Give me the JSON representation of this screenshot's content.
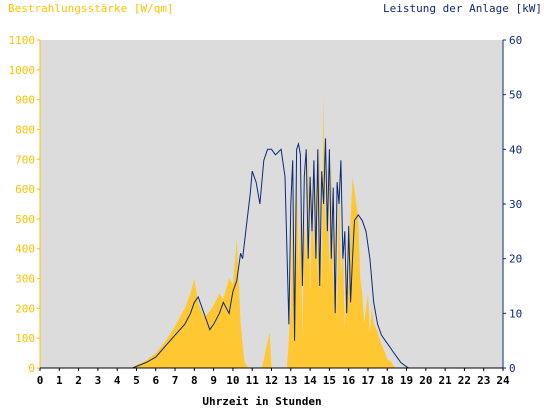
{
  "chart_data": {
    "type": "area",
    "title_left": "Bestrahlungsstärke [W/qm]",
    "title_right": "Leistung der Anlage [kW]",
    "xlabel": "Uhrzeit in Stunden",
    "x_ticks": [
      "0",
      "1",
      "2",
      "3",
      "4",
      "5",
      "6",
      "7",
      "8",
      "9",
      "10",
      "11",
      "12",
      "13",
      "14",
      "15",
      "16",
      "17",
      "18",
      "19",
      "20",
      "21",
      "22",
      "23",
      "24"
    ],
    "xlim": [
      0,
      24
    ],
    "left_axis": {
      "label": "Bestrahlungsstärke [W/qm]",
      "ylim": [
        0,
        1100
      ],
      "ticks": [
        "0",
        "100",
        "200",
        "300",
        "400",
        "500",
        "600",
        "700",
        "800",
        "900",
        "1000",
        "1100"
      ],
      "color": "#ffc000"
    },
    "right_axis": {
      "label": "Leistung der Anlage [kW]",
      "ylim": [
        0,
        60
      ],
      "ticks": [
        "0",
        "10",
        "20",
        "30",
        "40",
        "50",
        "60"
      ],
      "color": "#0b2a7a"
    },
    "grid": false,
    "plot_background": "#dcdcdc",
    "series": [
      {
        "name": "Bestrahlungsstärke [W/qm]",
        "axis": "left",
        "style": "area",
        "color": "#ffc832",
        "x": [
          0,
          4.7,
          5.0,
          5.5,
          6.0,
          6.5,
          7.0,
          7.5,
          7.8,
          8.0,
          8.2,
          8.5,
          8.8,
          9.0,
          9.3,
          9.5,
          9.8,
          10.0,
          10.2,
          10.4,
          10.5,
          10.6,
          10.8,
          11.0,
          11.2,
          11.5,
          11.9,
          12.0,
          12.1,
          12.3,
          12.6,
          12.8,
          13.0,
          13.1,
          13.2,
          13.3,
          13.4,
          13.5,
          13.6,
          13.7,
          13.8,
          13.9,
          14.0,
          14.1,
          14.2,
          14.3,
          14.4,
          14.5,
          14.6,
          14.7,
          14.8,
          14.9,
          15.0,
          15.1,
          15.2,
          15.3,
          15.4,
          15.5,
          15.6,
          15.7,
          15.8,
          15.9,
          16.0,
          16.1,
          16.2,
          16.3,
          16.4,
          16.5,
          16.6,
          16.7,
          16.8,
          16.9,
          17.0,
          17.1,
          17.2,
          17.3,
          17.5,
          17.7,
          17.9,
          18.0,
          18.2,
          18.4,
          18.6,
          18.8,
          19.0,
          19.3,
          19.6,
          20.0,
          20.5,
          24
        ],
        "values": [
          0,
          0,
          10,
          25,
          50,
          90,
          140,
          200,
          250,
          300,
          220,
          170,
          190,
          210,
          250,
          230,
          300,
          280,
          430,
          150,
          80,
          20,
          0,
          0,
          0,
          0,
          120,
          0,
          0,
          0,
          0,
          0,
          200,
          600,
          150,
          700,
          300,
          550,
          100,
          500,
          350,
          750,
          250,
          600,
          400,
          650,
          300,
          750,
          250,
          920,
          450,
          700,
          300,
          700,
          250,
          500,
          150,
          650,
          300,
          450,
          120,
          350,
          250,
          500,
          640,
          600,
          550,
          500,
          300,
          250,
          150,
          200,
          250,
          120,
          200,
          150,
          120,
          80,
          50,
          30,
          20,
          0,
          0,
          0,
          0,
          0,
          0,
          0,
          0,
          0
        ]
      },
      {
        "name": "Leistung der Anlage [kW]",
        "axis": "right",
        "style": "line",
        "color": "#0b2a7a",
        "x": [
          0,
          4.8,
          5.5,
          6.0,
          6.5,
          7.0,
          7.5,
          7.8,
          8.0,
          8.2,
          8.5,
          8.8,
          9.0,
          9.3,
          9.5,
          9.8,
          10.0,
          10.2,
          10.4,
          10.5,
          10.7,
          10.9,
          11.0,
          11.2,
          11.4,
          11.6,
          11.7,
          11.8,
          12.0,
          12.2,
          12.5,
          12.7,
          12.9,
          13.0,
          13.1,
          13.2,
          13.3,
          13.4,
          13.5,
          13.6,
          13.7,
          13.8,
          13.9,
          14.0,
          14.1,
          14.2,
          14.3,
          14.4,
          14.5,
          14.6,
          14.7,
          14.8,
          14.9,
          15.0,
          15.1,
          15.2,
          15.3,
          15.4,
          15.5,
          15.6,
          15.7,
          15.8,
          15.9,
          16.0,
          16.1,
          16.2,
          16.3,
          16.5,
          16.7,
          16.9,
          17.1,
          17.3,
          17.5,
          17.7,
          17.9,
          18.1,
          18.3,
          18.5,
          18.7,
          18.9,
          19.1,
          19.4,
          19.7,
          20.0,
          20.5,
          24
        ],
        "values": [
          0,
          0,
          1,
          2,
          4,
          6,
          8,
          10,
          12,
          13,
          10,
          7,
          8,
          10,
          12,
          10,
          14,
          16,
          21,
          20,
          26,
          32,
          36,
          34,
          30,
          38,
          39,
          40,
          40,
          39,
          40,
          35,
          8,
          30,
          38,
          5,
          40,
          41,
          39,
          15,
          35,
          40,
          20,
          35,
          25,
          38,
          20,
          40,
          15,
          36,
          30,
          42,
          25,
          40,
          20,
          33,
          10,
          34,
          30,
          38,
          20,
          25,
          10,
          26,
          12,
          20,
          27,
          28,
          27,
          25,
          20,
          12,
          8,
          6,
          5,
          4,
          3,
          2,
          1,
          0.5,
          0,
          0,
          0,
          0,
          0,
          0
        ]
      }
    ]
  }
}
